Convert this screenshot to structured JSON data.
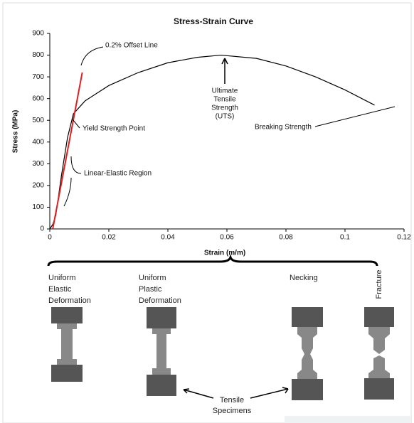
{
  "chart_data": {
    "type": "line",
    "title": "Stress-Strain Curve",
    "x_label": "Strain (m/m)",
    "y_label": "Stress (MPa)",
    "xlim": [
      0,
      0.12
    ],
    "ylim": [
      0,
      900
    ],
    "xticks": [
      0,
      0.02,
      0.04,
      0.06,
      0.08,
      0.1,
      0.12
    ],
    "yticks": [
      0,
      100,
      200,
      300,
      400,
      500,
      600,
      700,
      800,
      900
    ],
    "series": [
      {
        "color": "#000000",
        "x": [
          0,
          0.001,
          0.002,
          0.004,
          0.006,
          0.008,
          0.012,
          0.02,
          0.03,
          0.04,
          0.05,
          0.058,
          0.07,
          0.08,
          0.09,
          0.1,
          0.11
        ],
        "values": [
          0,
          20,
          60,
          250,
          420,
          530,
          590,
          660,
          720,
          765,
          790,
          800,
          785,
          750,
          700,
          640,
          570
        ]
      },
      {
        "color": "#e02020",
        "x": [
          0.001,
          0.011
        ],
        "values": [
          0,
          720
        ]
      }
    ],
    "annotations": [
      "0.2% Offset Line",
      "Yield Strength Point",
      "Linear-Elastic Region",
      "Breaking Strength"
    ],
    "uts_label": [
      "Ultimate",
      "Tensile",
      "Strength",
      "(UTS)"
    ]
  },
  "diagram": {
    "stages": [
      [
        "Uniform",
        "Elastic",
        "Deformation"
      ],
      [
        "Uniform",
        "Plastic",
        "Deformation"
      ],
      [
        "Necking"
      ],
      [
        "Fracture"
      ]
    ],
    "specimens_label": [
      "Tensile",
      "Specimens"
    ]
  }
}
